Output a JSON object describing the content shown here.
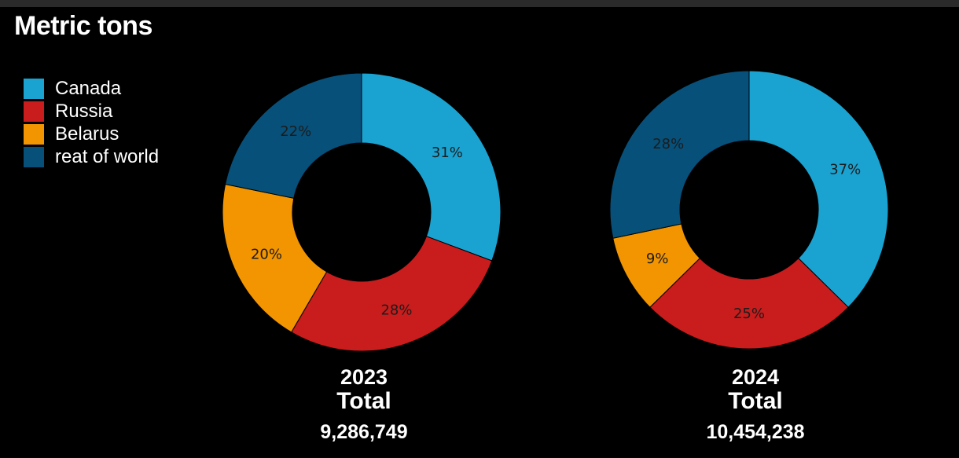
{
  "title": "Metric tons",
  "legend": [
    {
      "label": "Canada",
      "color": "#1aa3d1"
    },
    {
      "label": "Russia",
      "color": "#c91c1c"
    },
    {
      "label": "Belarus",
      "color": "#f29500"
    },
    {
      "label": "reat of world",
      "color": "#06507a"
    }
  ],
  "chart_data": [
    {
      "type": "pie",
      "donut": true,
      "year": "2023",
      "total_label": "Total",
      "total_value": "9,286,749",
      "categories": [
        "Canada",
        "Russia",
        "Belarus",
        "reat of world"
      ],
      "values": [
        31,
        28,
        20,
        22
      ],
      "labels": [
        "31%",
        "28%",
        "20%",
        "22%"
      ]
    },
    {
      "type": "pie",
      "donut": true,
      "year": "2024",
      "total_label": "Total",
      "total_value": "10,454,238",
      "categories": [
        "Canada",
        "Russia",
        "Belarus",
        "reat of world"
      ],
      "values": [
        37,
        25,
        9,
        28
      ],
      "labels": [
        "37%",
        "25%",
        "9%",
        "28%"
      ]
    }
  ]
}
